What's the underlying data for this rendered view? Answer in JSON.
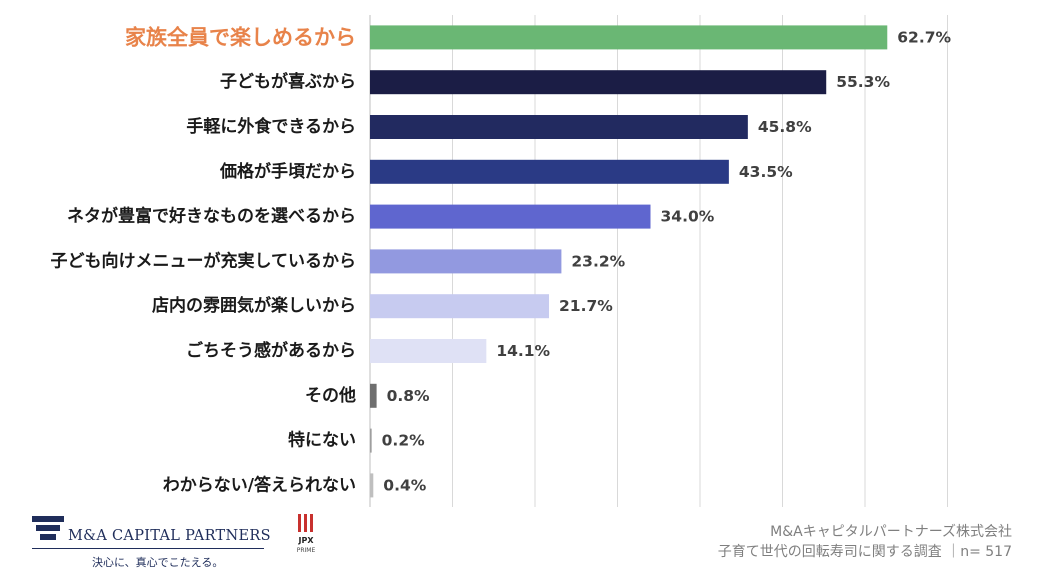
{
  "chart_data": {
    "type": "bar",
    "orientation": "horizontal",
    "categories": [
      "家族全員で楽しめるから",
      "子どもが喜ぶから",
      "手軽に外食できるから",
      "価格が手頃だから",
      "ネタが豊富で好きなものを選べるから",
      "子ども向けメニューが充実しているから",
      "店内の雰囲気が楽しいから",
      "ごちそう感があるから",
      "その他",
      "特にない",
      "わからない/答えられない"
    ],
    "values": [
      62.7,
      55.3,
      45.8,
      43.5,
      34.0,
      23.2,
      21.7,
      14.1,
      0.8,
      0.2,
      0.4
    ],
    "value_labels": [
      "62.7%",
      "55.3%",
      "45.8%",
      "43.5%",
      "34.0%",
      "23.2%",
      "21.7%",
      "14.1%",
      "0.8%",
      "0.2%",
      "0.4%"
    ],
    "bar_colors": [
      "#6ab774",
      "#1b1d45",
      "#222a60",
      "#2a3a85",
      "#5f66cf",
      "#9299e0",
      "#c7cbf0",
      "#dfe1f5",
      "#6f6f6f",
      "#9f9f9f",
      "#bfbfbf"
    ],
    "highlight_category_color": "#e8834a",
    "xlim": [
      0,
      70
    ],
    "grid": true,
    "unit": "%"
  },
  "footer": {
    "brand": "M&A CAPITAL PARTNERS",
    "tagline": "決心に、真心でこたえる。",
    "jpx_line1": "JPX",
    "jpx_line2": "PRIME",
    "source_line1": "M&Aキャピタルパートナーズ株式会社",
    "source_line2": "子育て世代の回転寿司に関する調査 ｜n= 517"
  }
}
